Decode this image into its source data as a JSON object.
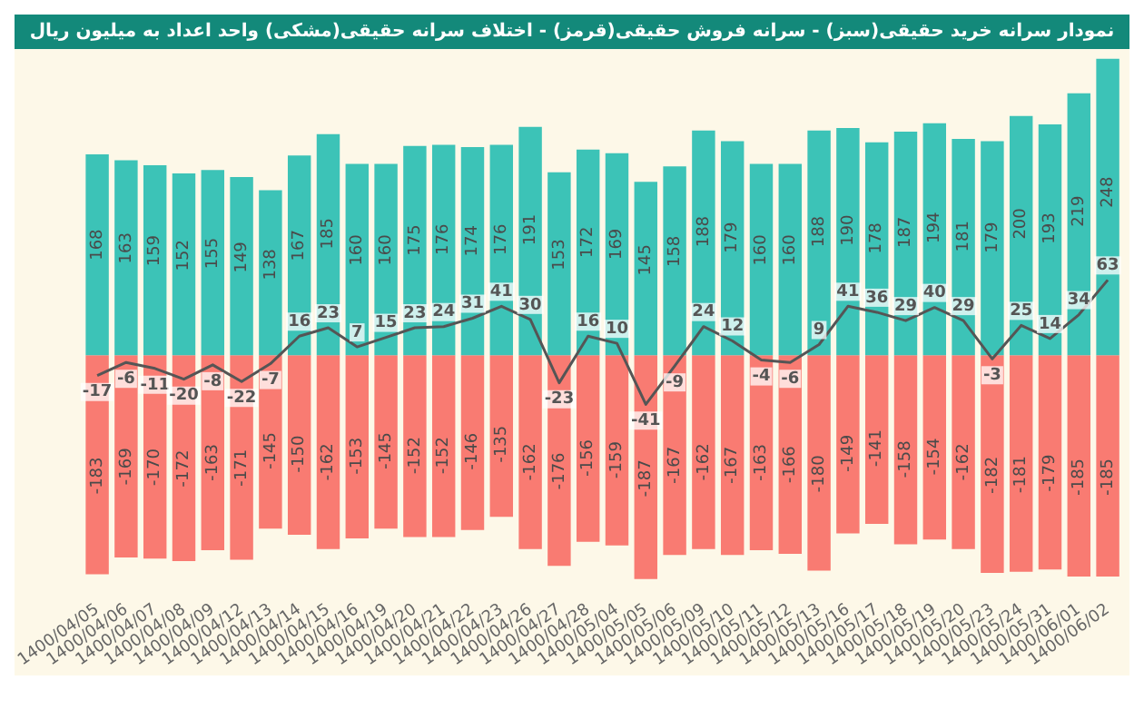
{
  "chart_data": {
    "type": "bar",
    "title": "نمودار سرانه خرید حقیقی(سبز) - سرانه فروش حقیقی(قرمز) - اختلاف سرانه حقیقی(مشکی) واحد اعداد به میلیون ریال",
    "categories": [
      "1400/04/05",
      "1400/04/06",
      "1400/04/07",
      "1400/04/08",
      "1400/04/09",
      "1400/04/12",
      "1400/04/13",
      "1400/04/14",
      "1400/04/15",
      "1400/04/16",
      "1400/04/19",
      "1400/04/20",
      "1400/04/21",
      "1400/04/22",
      "1400/04/23",
      "1400/04/26",
      "1400/04/27",
      "1400/04/28",
      "1400/05/04",
      "1400/05/05",
      "1400/05/06",
      "1400/05/09",
      "1400/05/10",
      "1400/05/11",
      "1400/05/12",
      "1400/05/13",
      "1400/05/16",
      "1400/05/17",
      "1400/05/18",
      "1400/05/19",
      "1400/05/20",
      "1400/05/23",
      "1400/05/24",
      "1400/05/31",
      "1400/06/01",
      "1400/06/02"
    ],
    "stacked": true,
    "data_labels": true,
    "legend": false,
    "grid": false,
    "tick_labels": "x",
    "series": [
      {
        "color": "#3cc3b7",
        "values": [
          168,
          163,
          159,
          152,
          155,
          149,
          138,
          167,
          185,
          160,
          160,
          175,
          176,
          174,
          176,
          191,
          153,
          172,
          169,
          145,
          158,
          188,
          179,
          160,
          160,
          188,
          190,
          178,
          187,
          194,
          181,
          179,
          200,
          193,
          219,
          248
        ]
      },
      {
        "color": "#f97b72",
        "values": [
          -183,
          -169,
          -170,
          -172,
          -163,
          -171,
          -145,
          -150,
          -162,
          -153,
          -145,
          -152,
          -152,
          -146,
          -135,
          -162,
          -176,
          -156,
          -159,
          -187,
          -167,
          -162,
          -167,
          -163,
          -166,
          -180,
          -149,
          -141,
          -158,
          -154,
          -162,
          -182,
          -181,
          -179,
          -185,
          -185
        ]
      },
      {
        "type": "line",
        "color": "#555555",
        "marker": "none",
        "values": [
          -17,
          -6,
          -11,
          -20,
          -8,
          -22,
          -7,
          16,
          23,
          7,
          15,
          23,
          24,
          31,
          41,
          30,
          -23,
          16,
          10,
          -41,
          -9,
          24,
          12,
          -4,
          -6,
          9,
          41,
          36,
          29,
          40,
          29,
          -3,
          25,
          14,
          34,
          63
        ]
      }
    ]
  }
}
